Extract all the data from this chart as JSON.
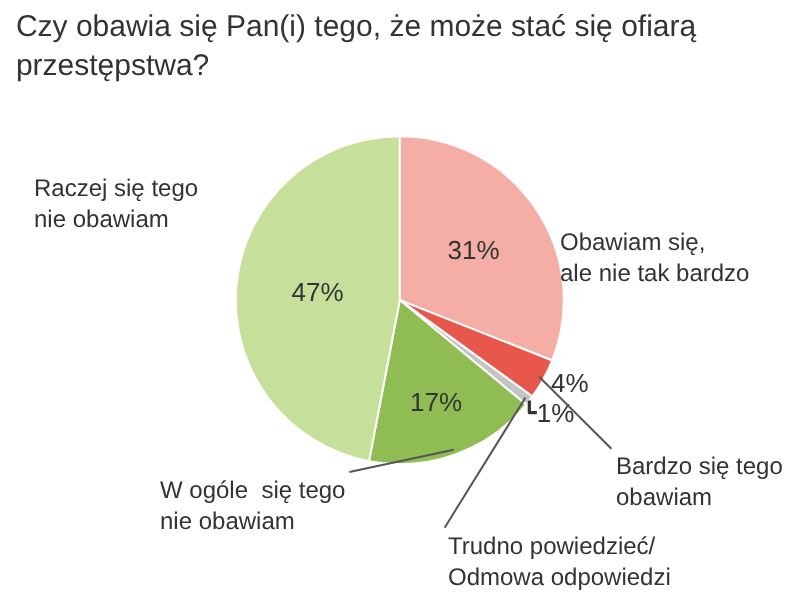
{
  "chart_data": {
    "type": "pie",
    "title": "Czy obawia się Pan(i) tego, że może stać się ofiarą\nprzestępstwa?",
    "categories": [
      "Obawiam się,\nale nie tak bardzo",
      "Bardzo się tego\nobawiam",
      "Trudno powiedzieć/\nOdmowa odpowiedzi",
      "W ogóle  się tego\nnie obawiam",
      "Raczej się tego\nnie obawiam"
    ],
    "values": [
      31,
      4,
      1,
      17,
      47
    ],
    "value_labels": [
      "31%",
      "4%",
      "1%",
      "17%",
      "47%"
    ],
    "colors": [
      "#f4aea5",
      "#e8574b",
      "#c4c4c4",
      "#8fbd53",
      "#c6e09c"
    ],
    "legend": false
  }
}
